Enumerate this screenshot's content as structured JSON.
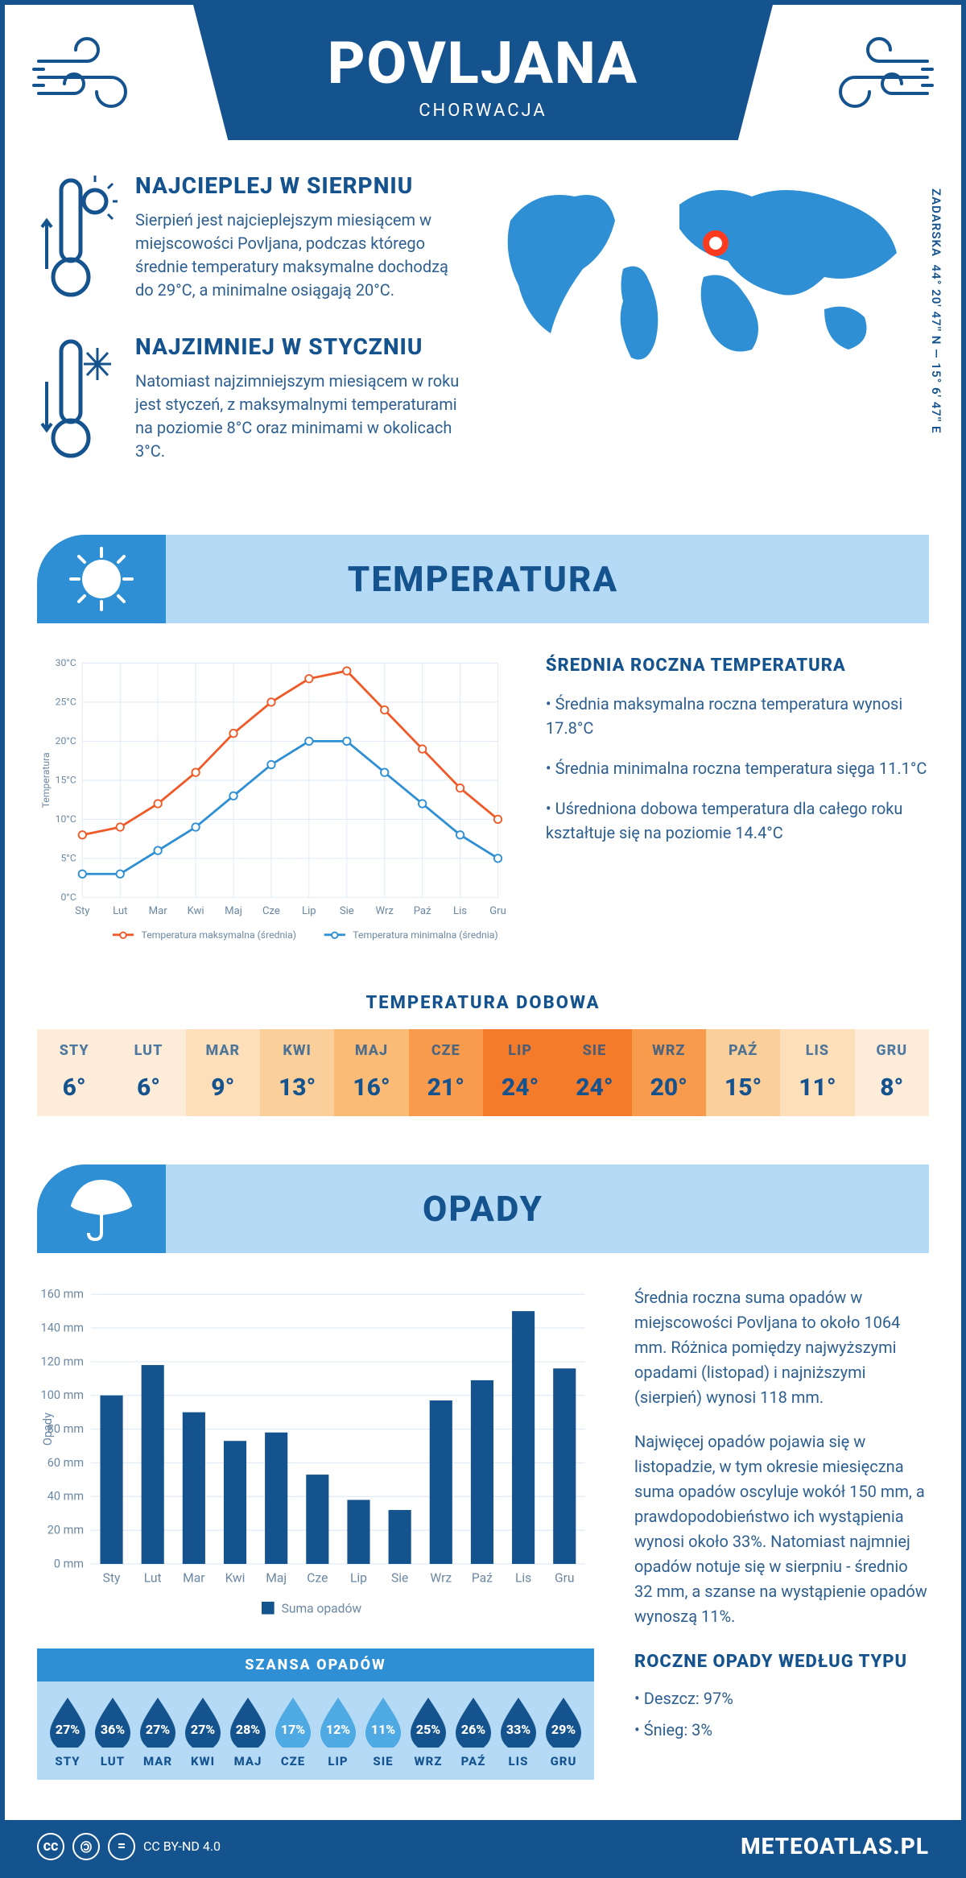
{
  "header": {
    "city": "POVLJANA",
    "country": "CHORWACJA"
  },
  "coords": {
    "text": "44° 20' 47'' N — 15° 6' 47'' E",
    "region": "ZADARSKA"
  },
  "hot": {
    "title": "NAJCIEPLEJ W SIERPNIU",
    "text": "Sierpień jest najcieplejszym miesiącem w miejscowości Povljana, podczas którego średnie temperatury maksymalne dochodzą do 29°C, a minimalne osiągają 20°C."
  },
  "cold": {
    "title": "NAJZIMNIEJ W STYCZNIU",
    "text": "Natomiast najzimniejszym miesiącem w roku jest styczeń, z maksymalnymi temperaturami na poziomie 8°C oraz minimami w okolicach 3°C."
  },
  "sections": {
    "temperature": "TEMPERATURA",
    "opady": "OPADY"
  },
  "months_short": [
    "Sty",
    "Lut",
    "Mar",
    "Kwi",
    "Maj",
    "Cze",
    "Lip",
    "Sie",
    "Wrz",
    "Paź",
    "Lis",
    "Gru"
  ],
  "months_upper": [
    "STY",
    "LUT",
    "MAR",
    "KWI",
    "MAJ",
    "CZE",
    "LIP",
    "SIE",
    "WRZ",
    "PAŹ",
    "LIS",
    "GRU"
  ],
  "temp_chart": {
    "type": "line",
    "ylabel": "Temperatura",
    "ylim": [
      0,
      30
    ],
    "ytick_step": 5,
    "ytick_suffix": "°C",
    "series": [
      {
        "name": "Temperatura maksymalna (średnia)",
        "color": "#f05a28",
        "values": [
          8,
          9,
          12,
          16,
          21,
          25,
          28,
          29,
          24,
          19,
          14,
          10
        ]
      },
      {
        "name": "Temperatura minimalna (średnia)",
        "color": "#2f8fd4",
        "values": [
          3,
          3,
          6,
          9,
          13,
          17,
          20,
          20,
          16,
          12,
          8,
          5
        ]
      }
    ],
    "grid_color": "#dfeaf4",
    "background": "#ffffff",
    "line_width": 3,
    "marker": "circle",
    "marker_size": 5
  },
  "temp_side": {
    "title": "ŚREDNIA ROCZNA TEMPERATURA",
    "bullets": [
      "Średnia maksymalna roczna temperatura wynosi 17.8°C",
      "Średnia minimalna roczna temperatura sięga 11.1°C",
      "Uśredniona dobowa temperatura dla całego roku kształtuje się na poziomie 14.4°C"
    ]
  },
  "dobowa": {
    "title": "TEMPERATURA DOBOWA",
    "values": [
      6,
      6,
      9,
      13,
      16,
      21,
      24,
      24,
      20,
      15,
      11,
      8
    ],
    "colors": [
      "#fdecd8",
      "#fdecd8",
      "#fddfba",
      "#fbcf9a",
      "#fabb77",
      "#f89b4c",
      "#f47b2a",
      "#f47b2a",
      "#f89b4c",
      "#fbcf9a",
      "#fddfba",
      "#fdecd8"
    ]
  },
  "opady_chart": {
    "type": "bar",
    "ylabel": "Opady",
    "ylim": [
      0,
      160
    ],
    "ytick_step": 20,
    "ytick_suffix": " mm",
    "bar_color": "#15538f",
    "values": [
      100,
      118,
      90,
      73,
      78,
      53,
      38,
      32,
      97,
      109,
      150,
      116
    ],
    "legend": "Suma opadów",
    "grid_color": "#dfeaf4",
    "background": "#ffffff",
    "bar_width": 0.55
  },
  "opady_side": {
    "p1": "Średnia roczna suma opadów w miejscowości Povljana to około 1064 mm. Różnica pomiędzy najwyższymi opadami (listopad) i najniższymi (sierpień) wynosi 118 mm.",
    "p2": "Najwięcej opadów pojawia się w listopadzie, w tym okresie miesięczna suma opadów oscyluje wokół 150 mm, a prawdopodobieństwo ich wystąpienia wynosi około 33%. Natomiast najmniej opadów notuje się w sierpniu - średnio 32 mm, a szanse na wystąpienie opadów wynoszą 11%.",
    "type_title": "ROCZNE OPADY WEDŁUG TYPU",
    "types": [
      "Deszcz: 97%",
      "Śnieg: 3%"
    ]
  },
  "szansa": {
    "title": "SZANSA OPADÓW",
    "values": [
      27,
      36,
      27,
      27,
      28,
      17,
      12,
      11,
      25,
      26,
      33,
      29
    ],
    "colors_dark": "#15538f",
    "colors_light": "#4fa9e2",
    "dark_threshold": 25
  },
  "footer": {
    "license": "CC BY-ND 4.0",
    "brand": "METEOATLAS.PL"
  },
  "palette": {
    "primary": "#15538f",
    "accent": "#2f8fd4",
    "light": "#b5daf5",
    "orange": "#f05a28",
    "marker": "#ff3b1f"
  }
}
